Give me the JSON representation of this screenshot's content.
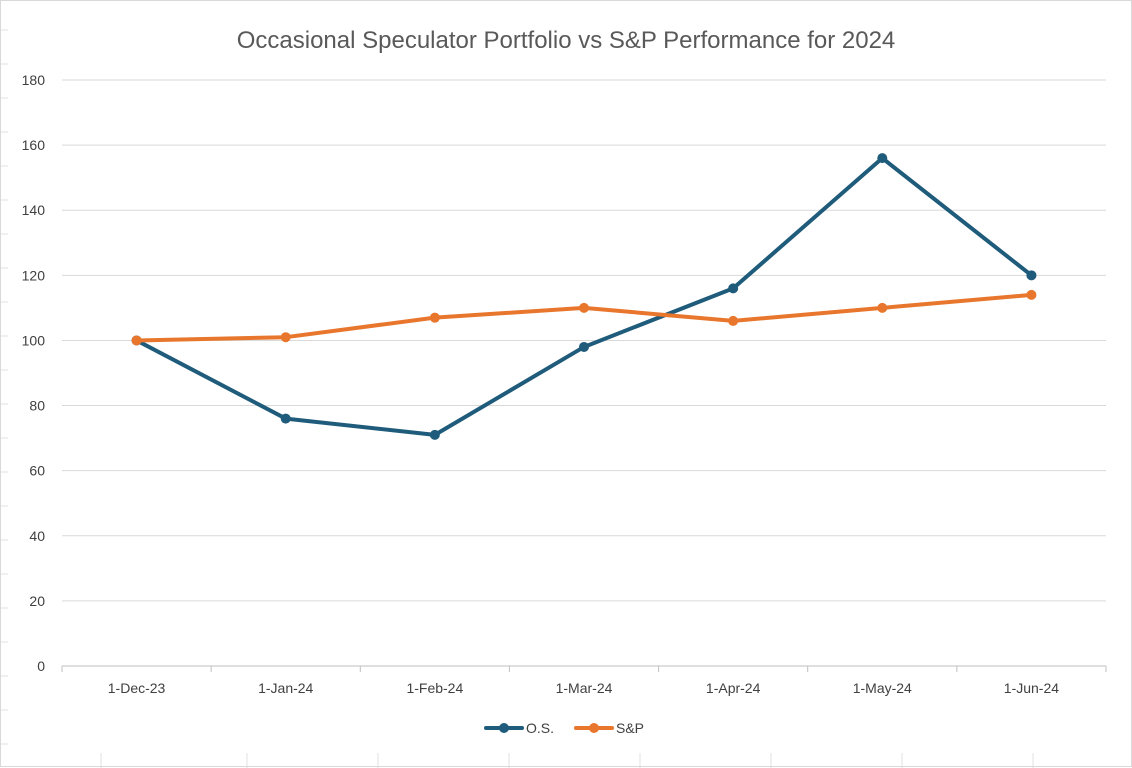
{
  "chart_data": {
    "type": "line",
    "title": "Occasional Speculator Portfolio vs S&P Performance for 2024",
    "xlabel": "",
    "ylabel": "",
    "categories": [
      "1-Dec-23",
      "1-Jan-24",
      "1-Feb-24",
      "1-Mar-24",
      "1-Apr-24",
      "1-May-24",
      "1-Jun-24"
    ],
    "ylim": [
      0,
      180
    ],
    "yticks": [
      0,
      20,
      40,
      60,
      80,
      100,
      120,
      140,
      160,
      180
    ],
    "grid": true,
    "legend_position": "bottom",
    "series": [
      {
        "name": "O.S.",
        "color": "#1f5b7a",
        "values": [
          100,
          76,
          71,
          98,
          116,
          156,
          120
        ]
      },
      {
        "name": "S&P",
        "color": "#e8762d",
        "values": [
          100,
          101,
          107,
          110,
          106,
          110,
          114
        ]
      }
    ]
  }
}
